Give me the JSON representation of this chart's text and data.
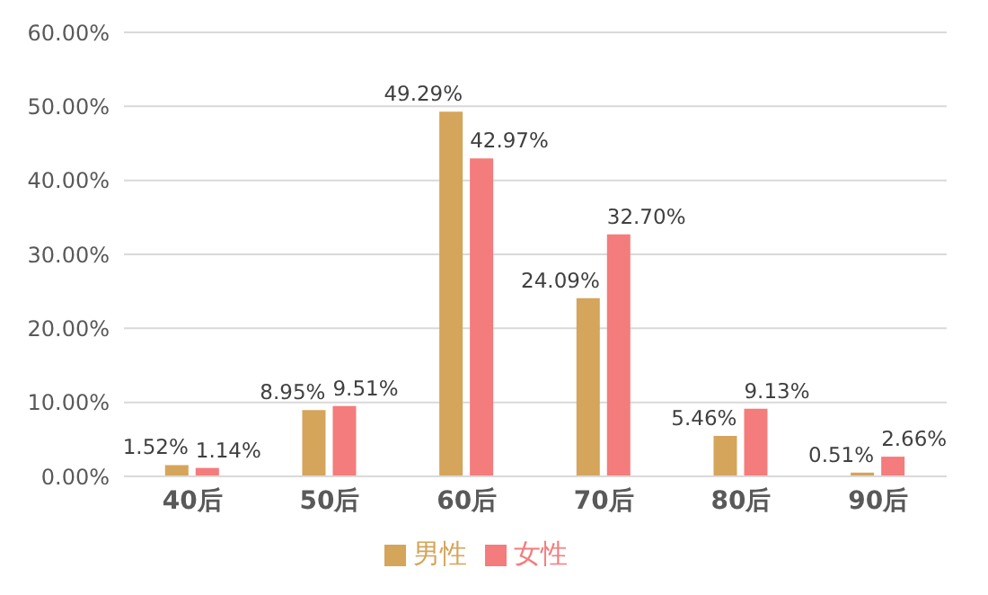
{
  "chart_data": {
    "type": "bar",
    "categories": [
      "40后",
      "50后",
      "60后",
      "70后",
      "80后",
      "90后"
    ],
    "series": [
      {
        "name": "男性",
        "color": "#d4a55a",
        "values": [
          1.52,
          8.95,
          49.29,
          24.09,
          5.46,
          0.51
        ],
        "value_labels": [
          "1.52%",
          "8.95%",
          "49.29%",
          "24.09%",
          "5.46%",
          "0.51%"
        ]
      },
      {
        "name": "女性",
        "color": "#f47c7c",
        "values": [
          1.14,
          9.51,
          42.97,
          32.7,
          9.13,
          2.66
        ],
        "value_labels": [
          "1.14%",
          "9.51%",
          "42.97%",
          "32.70%",
          "9.13%",
          "2.66%"
        ]
      }
    ],
    "ylim": [
      0,
      60
    ],
    "yticks": [
      {
        "value": 0,
        "label": "0.00%"
      },
      {
        "value": 10,
        "label": "10.00%"
      },
      {
        "value": 20,
        "label": "20.00%"
      },
      {
        "value": 30,
        "label": "30.00%"
      },
      {
        "value": 40,
        "label": "40.00%"
      },
      {
        "value": 50,
        "label": "50.00%"
      },
      {
        "value": 60,
        "label": "60.00%"
      }
    ],
    "grid": "y",
    "legend": "bottom"
  }
}
